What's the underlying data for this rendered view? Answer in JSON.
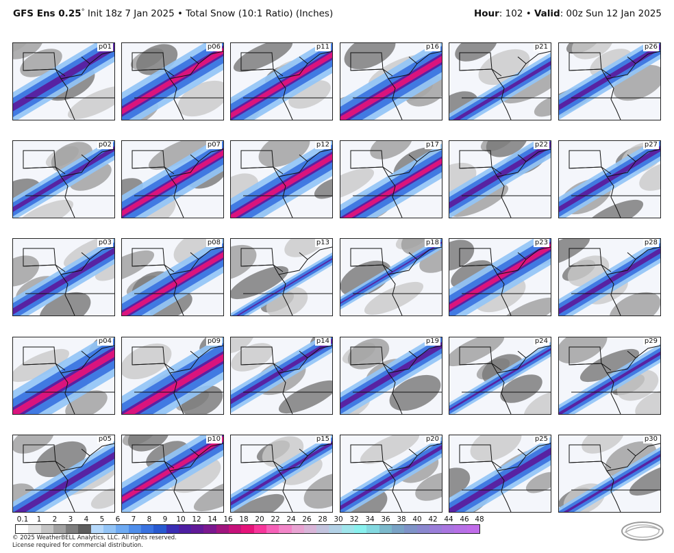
{
  "header": {
    "model": "GFS Ens 0.25",
    "degree": "°",
    "init": " Init 18z 7 Jan 2025 • Total Snow (10:1 Ratio) (Inches)",
    "hour_label": "Hour",
    "hour_value": ": 102 • ",
    "valid_label": "Valid",
    "valid_value": ": 00z Sun 12 Jan 2025"
  },
  "chart_data": {
    "type": "heatmap",
    "title": "GFS Ens 0.25° Init 18z 7 Jan 2025 • Total Snow (10:1 Ratio) (Inches)",
    "members": [
      [
        "p01",
        "p06",
        "p11",
        "p16",
        "p21",
        "p26"
      ],
      [
        "p02",
        "p07",
        "p12",
        "p17",
        "p22",
        "p27"
      ],
      [
        "p03",
        "p08",
        "p13",
        "p18",
        "p23",
        "p28"
      ],
      [
        "p04",
        "p09",
        "p14",
        "p19",
        "p24",
        "p29"
      ],
      [
        "p05",
        "p10",
        "p15",
        "p20",
        "p25",
        "p30"
      ]
    ],
    "intensity": [
      [
        0.55,
        0.75,
        0.7,
        0.8,
        0.3,
        0.4
      ],
      [
        0.35,
        0.7,
        0.75,
        0.65,
        0.45,
        0.4
      ],
      [
        0.45,
        0.7,
        0.1,
        0.1,
        0.7,
        0.4
      ],
      [
        0.95,
        0.9,
        0.35,
        0.45,
        0.15,
        0.25
      ],
      [
        0.5,
        0.65,
        0.25,
        0.3,
        0.5,
        0.2
      ]
    ],
    "colorbar": {
      "tick_labels": [
        "0.1",
        "1",
        "2",
        "3",
        "4",
        "5",
        "6",
        "7",
        "8",
        "9",
        "10",
        "12",
        "14",
        "16",
        "18",
        "20",
        "22",
        "24",
        "26",
        "28",
        "30",
        "32",
        "34",
        "36",
        "38",
        "40",
        "42",
        "44",
        "46",
        "48"
      ],
      "colors": [
        "#ffffff",
        "#e3e3e3",
        "#c4c4c4",
        "#a2a2a2",
        "#7e7e7e",
        "#5e5e5e",
        "#b6d9fb",
        "#93c4f6",
        "#6eaaf2",
        "#4f8eea",
        "#3a73e0",
        "#285ad0",
        "#3a2eb4",
        "#4e1fa2",
        "#611a98",
        "#7b188f",
        "#a0157e",
        "#c6127a",
        "#e5147a",
        "#f7369b",
        "#f661b8",
        "#f286c8",
        "#e8a3d2",
        "#d8b5d8",
        "#c2c3dd",
        "#b2d1e6",
        "#9fe5ec",
        "#89f0ee",
        "#83d8e0",
        "#7cb9cc",
        "#7aa3c6",
        "#7f93c8",
        "#8b88cf",
        "#9a7ed9",
        "#a976e0",
        "#b670e6",
        "#c06ce9"
      ]
    }
  },
  "footer": {
    "copyright": "© 2025 WeatherBELL Analytics, LLC. All rights reserved.",
    "license": "License required for commercial distribution."
  }
}
